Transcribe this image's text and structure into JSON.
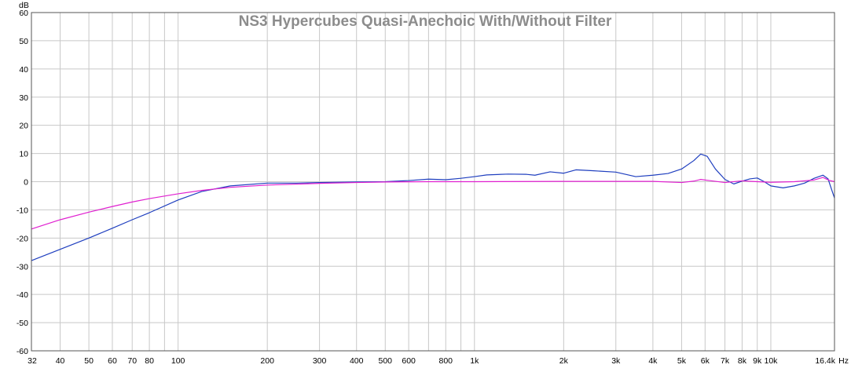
{
  "chart_data": {
    "type": "line",
    "title": "NS3 Hypercubes Quasi-Anechoic With/Without Filter",
    "ylabel": "dB",
    "xlabel": "Hz",
    "x_scale": "log",
    "xlim": [
      32,
      16400
    ],
    "ylim": [
      -60,
      60
    ],
    "grid": true,
    "y_ticks": [
      60,
      50,
      40,
      30,
      20,
      10,
      0,
      -10,
      -20,
      -30,
      -40,
      -50,
      -60
    ],
    "x_ticks": [
      {
        "value": 32,
        "label": "32"
      },
      {
        "value": 40,
        "label": "40"
      },
      {
        "value": 50,
        "label": "50"
      },
      {
        "value": 60,
        "label": "60"
      },
      {
        "value": 70,
        "label": "70"
      },
      {
        "value": 80,
        "label": "80"
      },
      {
        "value": 100,
        "label": "100"
      },
      {
        "value": 200,
        "label": "200"
      },
      {
        "value": 300,
        "label": "300"
      },
      {
        "value": 400,
        "label": "400"
      },
      {
        "value": 500,
        "label": "500"
      },
      {
        "value": 600,
        "label": "600"
      },
      {
        "value": 800,
        "label": "800"
      },
      {
        "value": 1000,
        "label": "1k"
      },
      {
        "value": 2000,
        "label": "2k"
      },
      {
        "value": 3000,
        "label": "3k"
      },
      {
        "value": 4000,
        "label": "4k"
      },
      {
        "value": 5000,
        "label": "5k"
      },
      {
        "value": 6000,
        "label": "6k"
      },
      {
        "value": 7000,
        "label": "7k"
      },
      {
        "value": 8000,
        "label": "8k"
      },
      {
        "value": 9000,
        "label": "9k"
      },
      {
        "value": 10000,
        "label": "10k"
      },
      {
        "value": 16400,
        "label": "16.4k"
      }
    ],
    "series": [
      {
        "color": "#1f3fbf",
        "points": [
          [
            32,
            -28
          ],
          [
            40,
            -24
          ],
          [
            50,
            -20
          ],
          [
            60,
            -16.5
          ],
          [
            70,
            -13.5
          ],
          [
            80,
            -11
          ],
          [
            100,
            -6.5
          ],
          [
            120,
            -3.5
          ],
          [
            150,
            -1.5
          ],
          [
            200,
            -0.5
          ],
          [
            250,
            -0.5
          ],
          [
            300,
            -0.3
          ],
          [
            400,
            -0.1
          ],
          [
            500,
            0
          ],
          [
            600,
            0.4
          ],
          [
            700,
            0.9
          ],
          [
            800,
            0.7
          ],
          [
            900,
            1.2
          ],
          [
            1000,
            1.8
          ],
          [
            1100,
            2.4
          ],
          [
            1300,
            2.7
          ],
          [
            1500,
            2.6
          ],
          [
            1600,
            2.3
          ],
          [
            1800,
            3.5
          ],
          [
            2000,
            3.0
          ],
          [
            2200,
            4.2
          ],
          [
            2500,
            3.9
          ],
          [
            3000,
            3.4
          ],
          [
            3500,
            1.8
          ],
          [
            4000,
            2.3
          ],
          [
            4500,
            2.9
          ],
          [
            5000,
            4.5
          ],
          [
            5500,
            7.5
          ],
          [
            5800,
            9.8
          ],
          [
            6100,
            9.0
          ],
          [
            6500,
            4.5
          ],
          [
            7000,
            0.8
          ],
          [
            7500,
            -0.8
          ],
          [
            8000,
            0.2
          ],
          [
            8500,
            1.0
          ],
          [
            9000,
            1.3
          ],
          [
            9500,
            0
          ],
          [
            10000,
            -1.5
          ],
          [
            11000,
            -2.2
          ],
          [
            12000,
            -1.5
          ],
          [
            13000,
            -0.5
          ],
          [
            14000,
            1.2
          ],
          [
            15000,
            2.3
          ],
          [
            15600,
            1.0
          ],
          [
            16000,
            -2.5
          ],
          [
            16400,
            -5.8
          ]
        ]
      },
      {
        "color": "#e020d0",
        "points": [
          [
            32,
            -16.8
          ],
          [
            40,
            -13.5
          ],
          [
            50,
            -10.8
          ],
          [
            60,
            -8.8
          ],
          [
            70,
            -7.2
          ],
          [
            80,
            -6
          ],
          [
            100,
            -4.3
          ],
          [
            120,
            -3.1
          ],
          [
            150,
            -2
          ],
          [
            200,
            -1.2
          ],
          [
            300,
            -0.6
          ],
          [
            400,
            -0.3
          ],
          [
            500,
            -0.1
          ],
          [
            700,
            0
          ],
          [
            1000,
            0
          ],
          [
            2000,
            0.1
          ],
          [
            3000,
            0.1
          ],
          [
            4000,
            0.1
          ],
          [
            5000,
            -0.3
          ],
          [
            5500,
            0.2
          ],
          [
            5800,
            0.8
          ],
          [
            6200,
            0.4
          ],
          [
            7000,
            -0.3
          ],
          [
            8000,
            0.3
          ],
          [
            9000,
            0
          ],
          [
            10000,
            -0.2
          ],
          [
            12000,
            0
          ],
          [
            14000,
            0.6
          ],
          [
            15000,
            1.5
          ],
          [
            15700,
            0.5
          ],
          [
            16400,
            0
          ]
        ]
      }
    ]
  }
}
